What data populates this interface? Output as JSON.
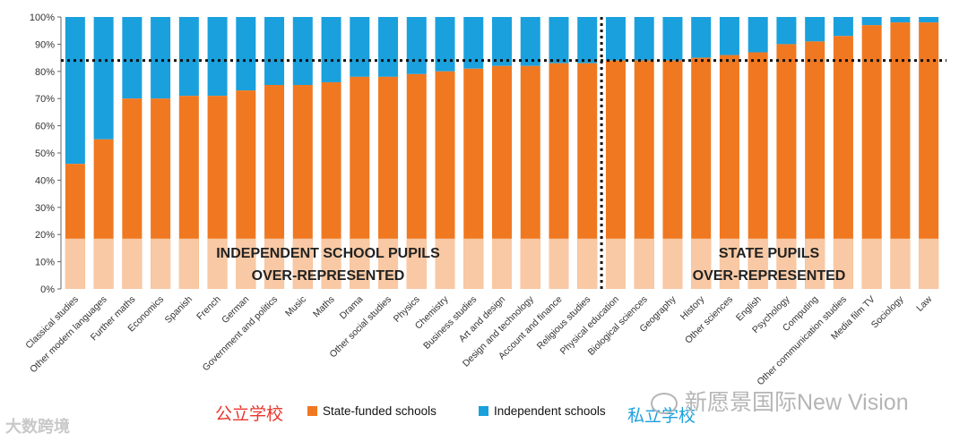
{
  "chart_data": {
    "type": "bar",
    "stacked": true,
    "ylim": [
      0,
      100
    ],
    "yticks": [
      "0%",
      "10%",
      "20%",
      "30%",
      "40%",
      "50%",
      "60%",
      "70%",
      "80%",
      "90%",
      "100%"
    ],
    "reference_line": 84,
    "divider_after_index": 19,
    "shaded_below": 18.5,
    "categories": [
      "Classical studies",
      "Other modern languages",
      "Further maths",
      "Economics",
      "Spanish",
      "French",
      "German",
      "Government and politics",
      "Music",
      "Maths",
      "Drama",
      "Other social studies",
      "Physics",
      "Chemistry",
      "Business studies",
      "Art and design",
      "Design and technology",
      "Account and finance",
      "Religious studies",
      "Physical education",
      "Biological sciences",
      "Geography",
      "History",
      "Other sciences",
      "English",
      "Psychology",
      "Computing",
      "Other communication studies",
      "Media film TV",
      "Sociology",
      "Law"
    ],
    "series": [
      {
        "name": "State-funded schools",
        "color": "#f07820",
        "values": [
          46,
          55,
          70,
          70,
          71,
          71,
          73,
          75,
          75,
          76,
          78,
          78,
          79,
          80,
          81,
          82,
          82,
          83,
          83,
          84,
          84,
          84,
          85,
          86,
          87,
          90,
          91,
          93,
          97,
          98,
          98
        ]
      },
      {
        "name": "Independent schools",
        "color": "#1aa0dd",
        "values": [
          54,
          45,
          30,
          30,
          29,
          29,
          27,
          25,
          25,
          24,
          22,
          22,
          21,
          20,
          19,
          18,
          18,
          17,
          17,
          16,
          16,
          16,
          15,
          14,
          13,
          10,
          9,
          7,
          3,
          2,
          2
        ]
      }
    ],
    "annotations": [
      {
        "line1": "INDEPENDENT SCHOOL PUPILS",
        "line2": "OVER-REPRESENTED"
      },
      {
        "line1": "STATE PUPILS",
        "line2": "OVER-REPRESENTED"
      }
    ],
    "shade_color": "#f8c9a4"
  },
  "legend": {
    "state_label": "State-funded schools",
    "independent_label": "Independent schools",
    "cn_public": "公立学校",
    "cn_private": "私立学校"
  },
  "watermarks": {
    "left": "大数跨境",
    "right": "新愿景国际New Vision"
  }
}
